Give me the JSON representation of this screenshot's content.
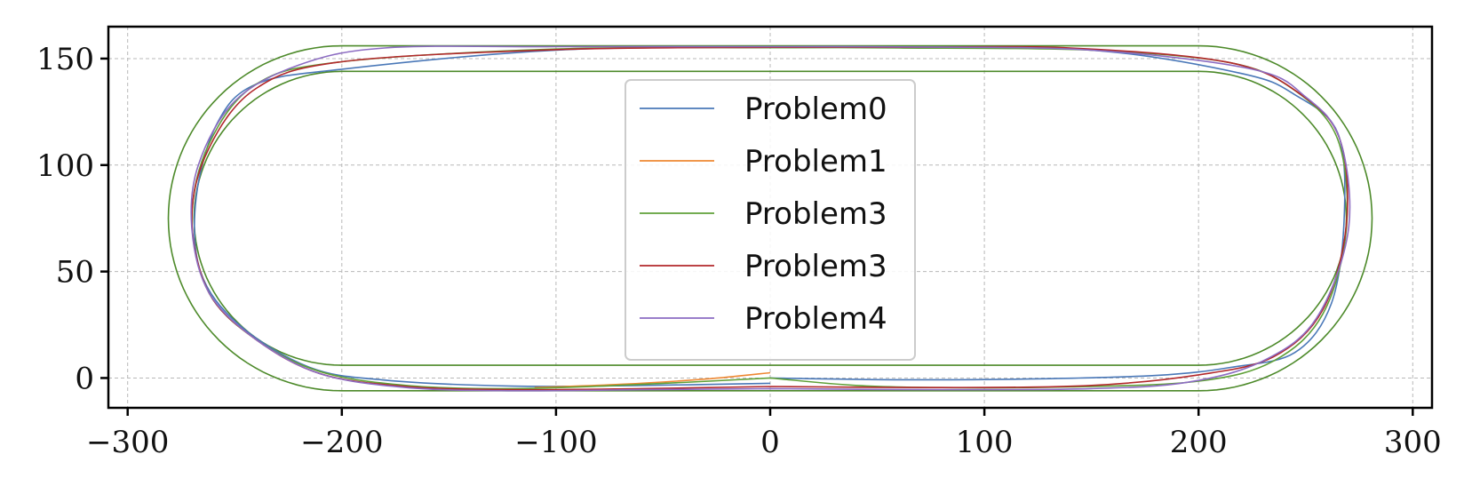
{
  "chart_data": {
    "type": "line",
    "title": "",
    "xlabel": "",
    "ylabel": "",
    "xlim": [
      -309,
      309
    ],
    "ylim": [
      -14,
      165
    ],
    "xticks": [
      -300,
      -200,
      -100,
      0,
      100,
      200,
      300
    ],
    "yticks": [
      0,
      50,
      100,
      150
    ],
    "xtick_labels": [
      "−300",
      "−200",
      "−100",
      "0",
      "100",
      "200",
      "300"
    ],
    "ytick_labels": [
      "0",
      "50",
      "100",
      "150"
    ],
    "grid": true,
    "legend_position": "center",
    "track_boundaries": {
      "color": "#4d8a2a",
      "inner": {
        "straight_x": [
          -200,
          200
        ],
        "center_y": 75,
        "radius": 69
      },
      "outer": {
        "straight_x": [
          -200,
          200
        ],
        "center_y": 75,
        "radius": 81
      }
    },
    "series": [
      {
        "name": "Problem0",
        "color": "#4a78b8",
        "points": [
          [
            0,
            0
          ],
          [
            60,
            -0.8
          ],
          [
            120,
            -0.5
          ],
          [
            180,
            1.2
          ],
          [
            215,
            5
          ],
          [
            245,
            12
          ],
          [
            262,
            35
          ],
          [
            268,
            75
          ],
          [
            265,
            115
          ],
          [
            245,
            133
          ],
          [
            220,
            143
          ],
          [
            150,
            154
          ],
          [
            60,
            155.2
          ],
          [
            0,
            155.3
          ],
          [
            -100,
            154
          ],
          [
            -200,
            145
          ],
          [
            -240,
            138
          ],
          [
            -258,
            120
          ],
          [
            -268,
            85
          ],
          [
            -266,
            50
          ],
          [
            -248,
            25
          ],
          [
            -215,
            5
          ],
          [
            -180,
            -1
          ],
          [
            -120,
            -3.8
          ],
          [
            -60,
            -3.5
          ],
          [
            0,
            -2.5
          ]
        ]
      },
      {
        "name": "Problem1",
        "color": "#ee8833",
        "points": [
          [
            -110,
            -4.5
          ],
          [
            -70,
            -3
          ],
          [
            -30,
            -0.5
          ],
          [
            0,
            2.5
          ]
        ]
      },
      {
        "name": "Problem3",
        "color": "#5fa038",
        "points": [
          [
            0,
            0
          ],
          [
            40,
            -3.5
          ],
          [
            80,
            -4.5
          ],
          [
            140,
            -4.2
          ],
          [
            200,
            -1.5
          ],
          [
            235,
            8
          ],
          [
            258,
            30
          ],
          [
            269,
            70
          ],
          [
            265,
            112
          ],
          [
            245,
            135
          ],
          [
            215,
            148
          ],
          [
            150,
            154
          ],
          [
            60,
            155
          ],
          [
            0,
            155.1
          ],
          [
            -100,
            154.5
          ],
          [
            -200,
            148.5
          ],
          [
            -240,
            138
          ],
          [
            -262,
            110
          ],
          [
            -270,
            75
          ],
          [
            -262,
            40
          ],
          [
            -240,
            18
          ],
          [
            -210,
            3
          ],
          [
            -170,
            -3.5
          ],
          [
            -120,
            -5
          ],
          [
            -60,
            -3
          ],
          [
            0,
            0
          ]
        ]
      },
      {
        "name": "Problem3",
        "color": "#b2282b",
        "points": [
          [
            0,
            -4
          ],
          [
            80,
            -4.5
          ],
          [
            150,
            -3.5
          ],
          [
            200,
            1.5
          ],
          [
            235,
            10
          ],
          [
            258,
            32
          ],
          [
            269,
            72
          ],
          [
            266,
            112
          ],
          [
            248,
            133
          ],
          [
            215,
            148
          ],
          [
            140,
            155
          ],
          [
            60,
            155.3
          ],
          [
            0,
            155.3
          ],
          [
            -100,
            154.2
          ],
          [
            -200,
            148.5
          ],
          [
            -240,
            136
          ],
          [
            -262,
            108
          ],
          [
            -270,
            75
          ],
          [
            -262,
            40
          ],
          [
            -240,
            18
          ],
          [
            -210,
            2
          ],
          [
            -170,
            -4
          ],
          [
            -120,
            -5.5
          ],
          [
            -60,
            -5
          ],
          [
            0,
            -4
          ]
        ]
      },
      {
        "name": "Problem4",
        "color": "#8c6cc2",
        "points": [
          [
            0,
            -5
          ],
          [
            80,
            -5.5
          ],
          [
            150,
            -5
          ],
          [
            195,
            -2
          ],
          [
            230,
            8
          ],
          [
            255,
            28
          ],
          [
            270,
            70
          ],
          [
            266,
            112
          ],
          [
            250,
            132
          ],
          [
            225,
            145
          ],
          [
            150,
            154
          ],
          [
            60,
            155.5
          ],
          [
            0,
            155.6
          ],
          [
            -100,
            155.6
          ],
          [
            -180,
            155
          ],
          [
            -220,
            147
          ],
          [
            -250,
            130
          ],
          [
            -267,
            100
          ],
          [
            -270,
            70
          ],
          [
            -262,
            40
          ],
          [
            -240,
            18
          ],
          [
            -210,
            2
          ],
          [
            -170,
            -4.5
          ],
          [
            -120,
            -6
          ],
          [
            -60,
            -5.5
          ],
          [
            0,
            -5
          ]
        ]
      }
    ]
  }
}
